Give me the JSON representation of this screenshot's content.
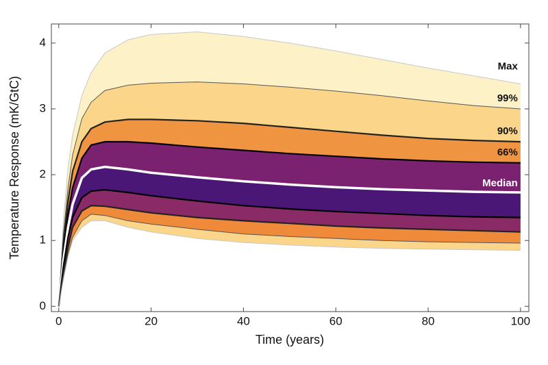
{
  "chart_data": {
    "type": "line",
    "xlabel": "Time (years)",
    "ylabel": "Temperature Response (mK/GtC)",
    "x": [
      0,
      1,
      2,
      3,
      5,
      7,
      10,
      15,
      20,
      30,
      40,
      50,
      60,
      70,
      80,
      90,
      100
    ],
    "xlim": [
      -1.6,
      101.8
    ],
    "xticks": [
      0,
      20,
      40,
      60,
      80,
      100
    ],
    "ylim": [
      -0.08,
      4.29
    ],
    "yticks": [
      0,
      1,
      2,
      3,
      4
    ],
    "series": [
      {
        "name": "Max",
        "color": "#c8c8c8",
        "values": [
          0,
          1.3,
          2.1,
          2.6,
          3.2,
          3.55,
          3.85,
          4.05,
          4.13,
          4.17,
          4.1,
          4.0,
          3.88,
          3.75,
          3.62,
          3.5,
          3.38
        ]
      },
      {
        "name": "99%",
        "color": "#555555",
        "values": [
          0,
          1.1,
          1.8,
          2.3,
          2.85,
          3.1,
          3.28,
          3.36,
          3.39,
          3.41,
          3.38,
          3.33,
          3.27,
          3.2,
          3.12,
          3.05,
          3.0
        ]
      },
      {
        "name": "90%",
        "color": "#222222",
        "values": [
          0,
          0.95,
          1.6,
          2.05,
          2.5,
          2.7,
          2.8,
          2.84,
          2.84,
          2.82,
          2.78,
          2.72,
          2.66,
          2.6,
          2.55,
          2.52,
          2.5
        ]
      },
      {
        "name": "66%",
        "color": "#000000",
        "values": [
          0,
          0.8,
          1.4,
          1.8,
          2.25,
          2.45,
          2.5,
          2.5,
          2.48,
          2.42,
          2.37,
          2.32,
          2.28,
          2.24,
          2.21,
          2.19,
          2.18
        ]
      },
      {
        "name": "Median",
        "color": "#ffffff",
        "values": [
          0,
          0.7,
          1.2,
          1.55,
          1.95,
          2.08,
          2.12,
          2.08,
          2.03,
          1.96,
          1.9,
          1.85,
          1.81,
          1.78,
          1.76,
          1.74,
          1.73
        ]
      },
      {
        "color": "#000000",
        "values": [
          0,
          0.6,
          1.05,
          1.35,
          1.65,
          1.75,
          1.77,
          1.73,
          1.68,
          1.6,
          1.53,
          1.48,
          1.44,
          1.41,
          1.38,
          1.36,
          1.35
        ]
      },
      {
        "color": "#222222",
        "values": [
          0,
          0.5,
          0.9,
          1.2,
          1.45,
          1.53,
          1.52,
          1.47,
          1.42,
          1.35,
          1.3,
          1.26,
          1.22,
          1.19,
          1.17,
          1.15,
          1.13
        ]
      },
      {
        "color": "#555555",
        "values": [
          0,
          0.45,
          0.8,
          1.05,
          1.3,
          1.4,
          1.38,
          1.3,
          1.25,
          1.17,
          1.1,
          1.06,
          1.03,
          1.0,
          0.98,
          0.97,
          0.96
        ]
      },
      {
        "color": "#c8c8c8",
        "values": [
          0,
          0.4,
          0.75,
          1.0,
          1.2,
          1.3,
          1.3,
          1.2,
          1.13,
          1.03,
          0.97,
          0.93,
          0.9,
          0.88,
          0.87,
          0.86,
          0.85
        ]
      }
    ]
  }
}
